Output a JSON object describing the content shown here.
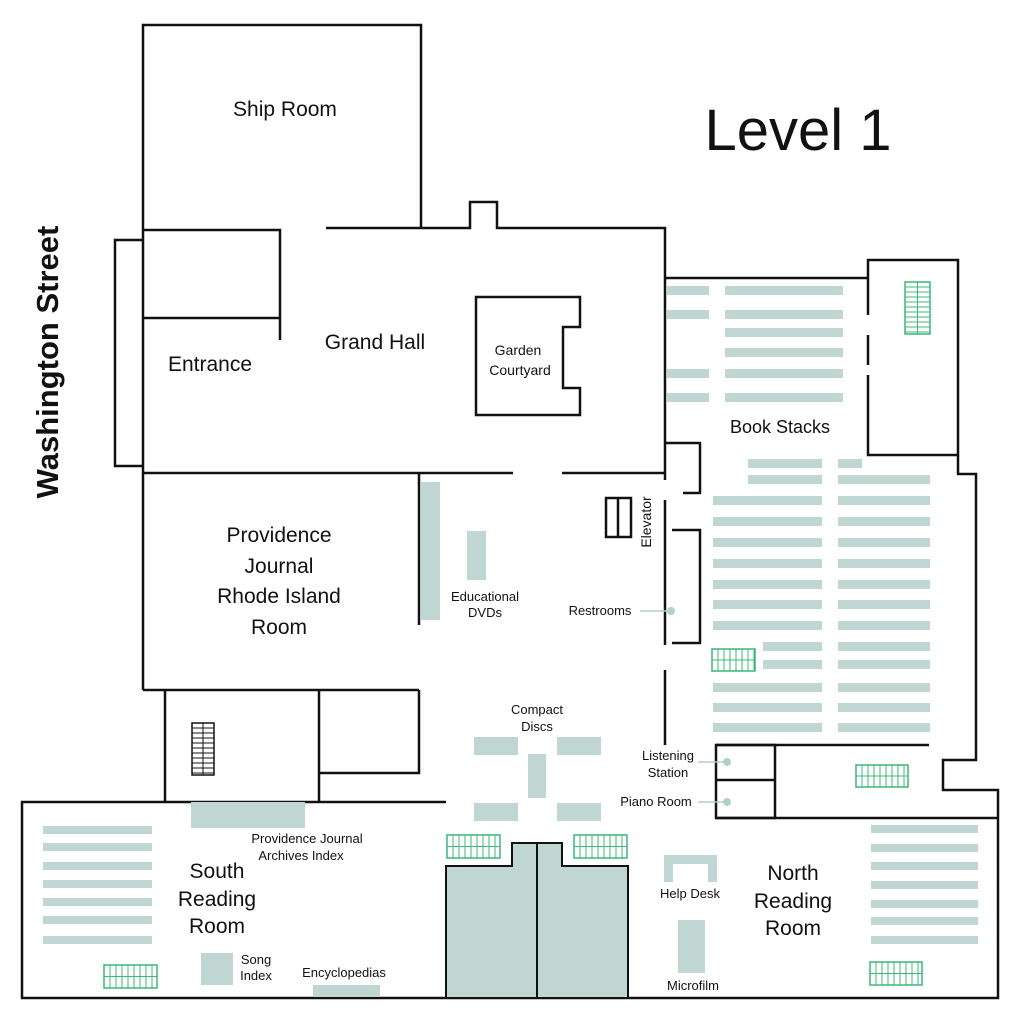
{
  "map": {
    "level_title": "Level 1",
    "street": "Washington Street",
    "rooms": {
      "ship_room": "Ship Room",
      "grand_hall": "Grand Hall",
      "entrance": "Entrance",
      "garden_1": "Garden",
      "garden_2": "Courtyard",
      "book_stacks": "Book Stacks",
      "pj_1": "Providence",
      "pj_2": "Journal",
      "pj_3": "Rhode Island",
      "pj_4": "Room",
      "south_1": "South",
      "south_2": "Reading",
      "south_3": "Room",
      "north_1": "North",
      "north_2": "Reading",
      "north_3": "Room"
    },
    "features": {
      "elevator": "Elevator",
      "dvd_1": "Educational",
      "dvd_2": "DVDs",
      "restrooms": "Restrooms",
      "cd_1": "Compact",
      "cd_2": "Discs",
      "listening_1": "Listening",
      "listening_2": "Station",
      "piano": "Piano Room",
      "archives_1": "Providence Journal",
      "archives_2": "Archives Index",
      "help_desk": "Help Desk",
      "song_1": "Song",
      "song_2": "Index",
      "encyclopedias": "Encyclopedias",
      "microfilm": "Microfilm"
    },
    "colors": {
      "wall": "#111111",
      "shelf": "#c0d6d2",
      "stairs": "#3cb878"
    }
  }
}
